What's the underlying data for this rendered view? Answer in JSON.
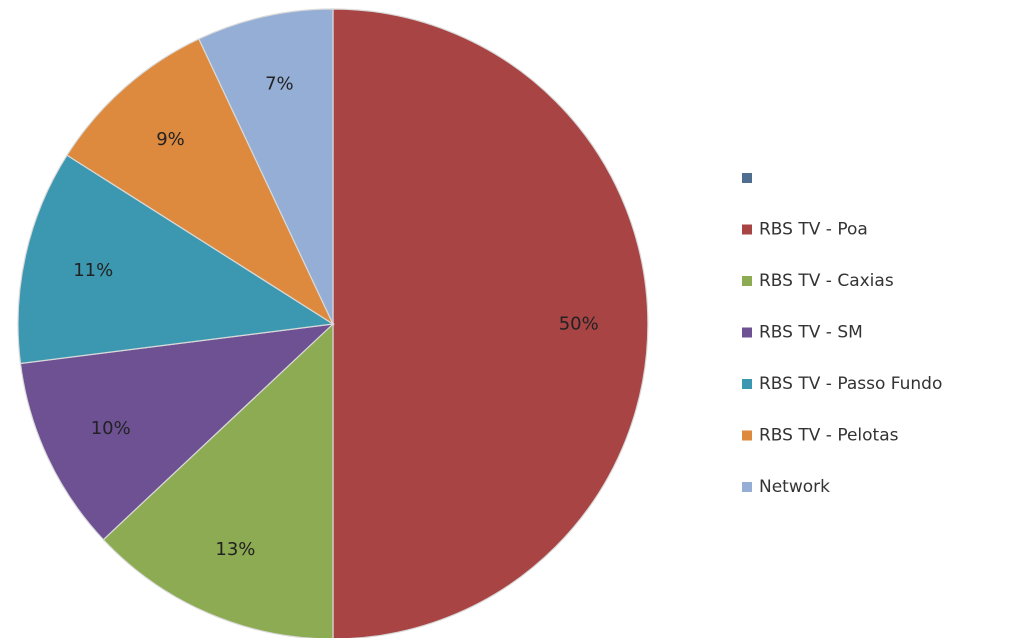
{
  "chart_data": {
    "type": "pie",
    "title": "",
    "slices": [
      {
        "label": "",
        "value": 0,
        "display": "",
        "color": "#4f6d8f"
      },
      {
        "label": "RBS TV - Poa",
        "value": 50,
        "display": "50%",
        "color": "#a84444"
      },
      {
        "label": "RBS TV - Caxias",
        "value": 13,
        "display": "13%",
        "color": "#8cab52"
      },
      {
        "label": "RBS TV - SM",
        "value": 10,
        "display": "10%",
        "color": "#6d5193"
      },
      {
        "label": "RBS TV - Passo Fundo",
        "value": 11,
        "display": "11%",
        "color": "#3c98b0"
      },
      {
        "label": "RBS TV - Pelotas",
        "value": 9,
        "display": "9%",
        "color": "#dd8a3e"
      },
      {
        "label": "Network",
        "value": 7,
        "display": "7%",
        "color": "#95aed6"
      }
    ],
    "legend_position": "right",
    "start_angle": "top, clockwise"
  }
}
